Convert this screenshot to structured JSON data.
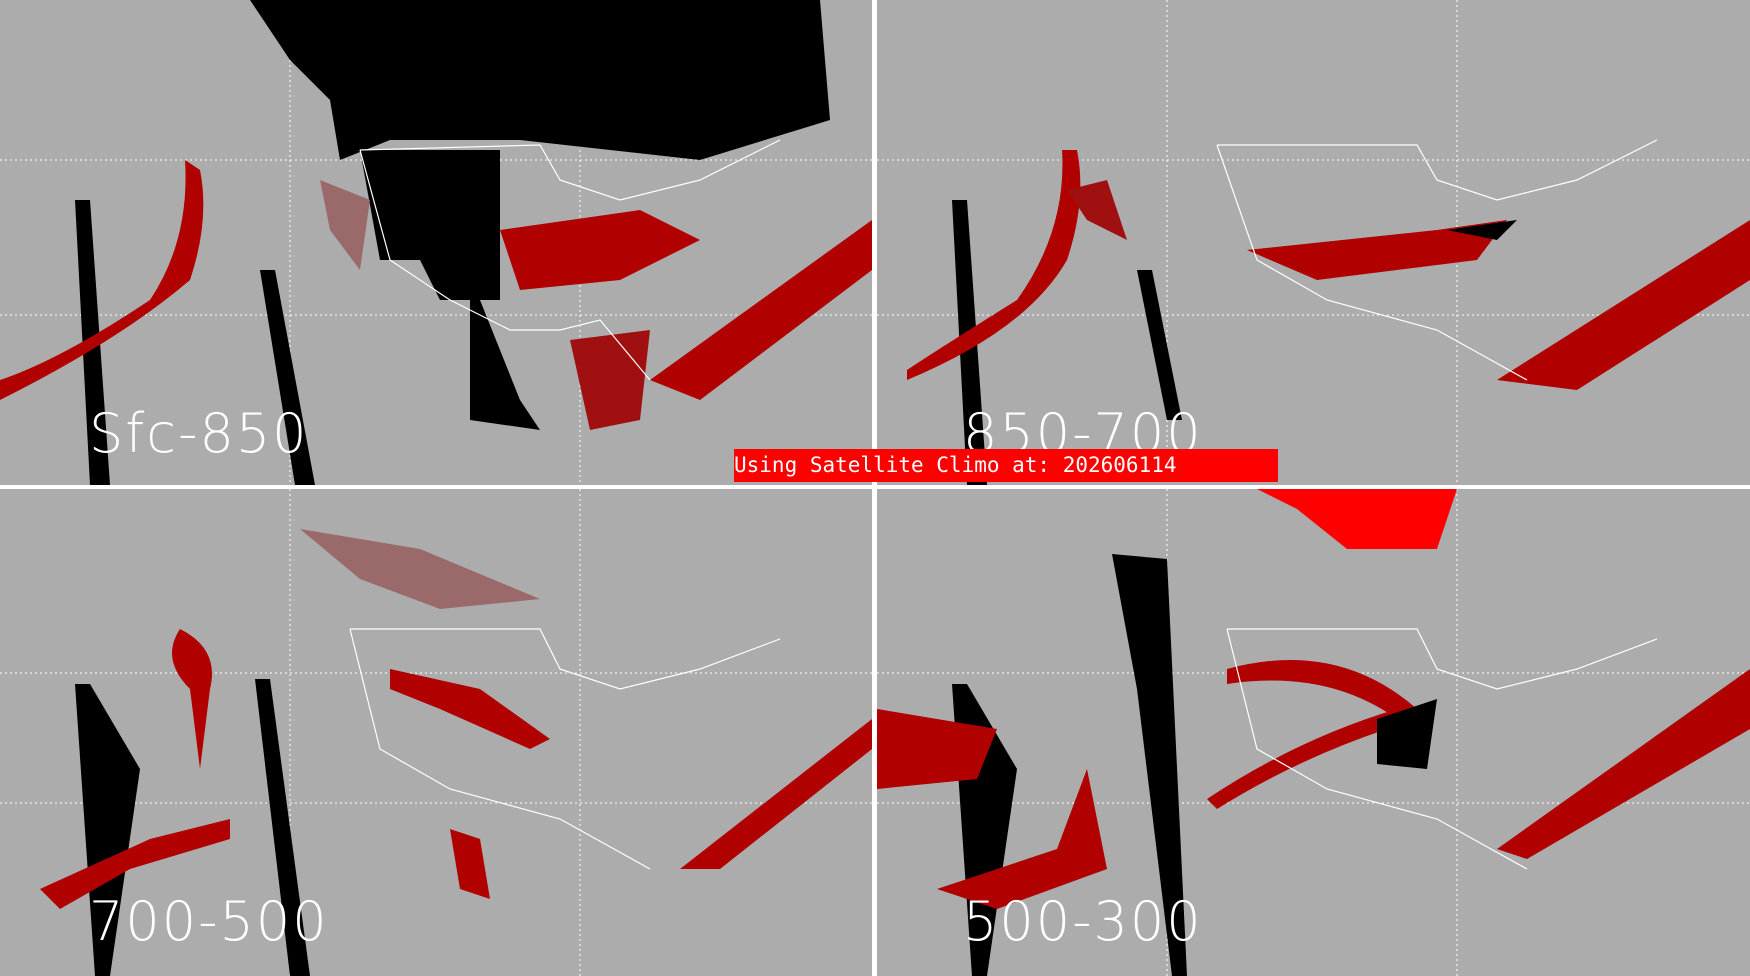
{
  "panels": [
    {
      "label": "Sfc-850"
    },
    {
      "label": "850-700"
    },
    {
      "label": "700-500"
    },
    {
      "label": "500-300"
    }
  ],
  "banner": {
    "text": "Using Satellite Climo at: 202606114"
  },
  "colors": {
    "background": "#acacac",
    "high": "#b00000",
    "medium": "#9a6a6a",
    "peak": "#ffb0c0",
    "missing": "#000000",
    "overlay": "#ff0000"
  }
}
